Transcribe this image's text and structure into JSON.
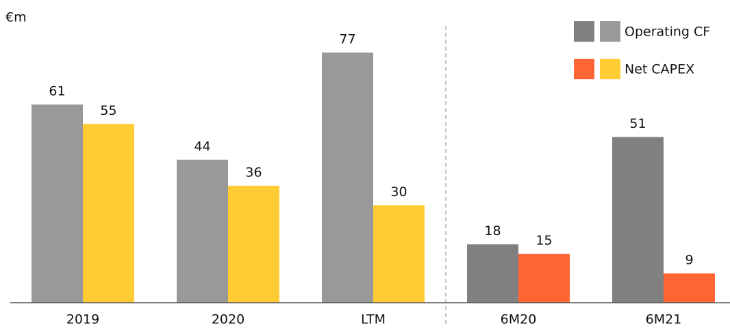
{
  "chart_data": {
    "type": "bar",
    "unit_label": "€m",
    "categories": [
      "2019",
      "2020",
      "LTM",
      "6M20",
      "6M21"
    ],
    "series": [
      {
        "name": "Operating CF",
        "values": [
          61,
          44,
          77,
          18,
          51
        ],
        "colors": [
          "#999999",
          "#999999",
          "#999999",
          "#808080",
          "#808080"
        ]
      },
      {
        "name": "Net CAPEX",
        "values": [
          55,
          36,
          30,
          15,
          9
        ],
        "colors": [
          "#ffcc33",
          "#ffcc33",
          "#ffcc33",
          "#ff6633",
          "#ff6633"
        ]
      }
    ],
    "ylim": [
      0,
      90
    ],
    "grid": false,
    "legend": "top-right"
  }
}
